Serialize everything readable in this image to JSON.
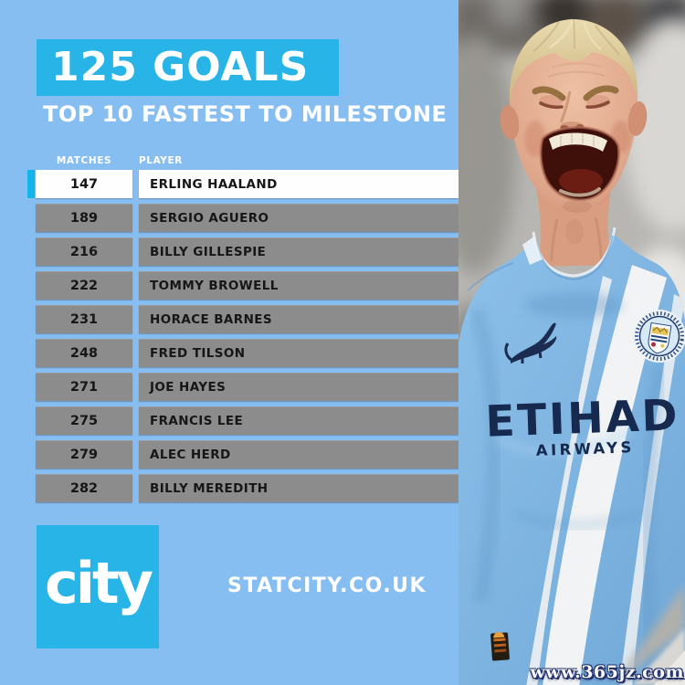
{
  "header": {
    "title": "125 GOALS",
    "subtitle": "TOP 10 FASTEST TO MILESTONE"
  },
  "table": {
    "columns": {
      "matches": "MATCHES",
      "player": "PLAYER"
    },
    "rows": [
      {
        "matches": "147",
        "player": "ERLING HAALAND",
        "highlight": true
      },
      {
        "matches": "189",
        "player": "SERGIO AGUERO",
        "highlight": false
      },
      {
        "matches": "216",
        "player": "BILLY GILLESPIE",
        "highlight": false
      },
      {
        "matches": "222",
        "player": "TOMMY BROWELL",
        "highlight": false
      },
      {
        "matches": "231",
        "player": "HORACE BARNES",
        "highlight": false
      },
      {
        "matches": "248",
        "player": "FRED TILSON",
        "highlight": false
      },
      {
        "matches": "271",
        "player": "JOE HAYES",
        "highlight": false
      },
      {
        "matches": "275",
        "player": "FRANCIS LEE",
        "highlight": false
      },
      {
        "matches": "279",
        "player": "ALEC HERD",
        "highlight": false
      },
      {
        "matches": "282",
        "player": "BILLY MEREDITH",
        "highlight": false
      }
    ]
  },
  "footer": {
    "logo": "city",
    "website": "STATCITY.CO.UK"
  },
  "photo": {
    "shirt_sponsor": "ETIHAD",
    "shirt_sponsor_line2": "AIRWAYS",
    "watermark": "www.365jz.com"
  },
  "colors": {
    "background": "#87BEF2",
    "accent_cyan": "#29B4E8",
    "row_gray": "#8C8C8C",
    "row_highlight": "#FFFFFF",
    "text_dark": "#161616",
    "shirt_blue": "#7FB6E2",
    "navy": "#16294E"
  },
  "chart_data": {
    "type": "table",
    "title": "125 GOALS",
    "subtitle": "TOP 10 FASTEST TO MILESTONE",
    "columns": [
      "MATCHES",
      "PLAYER"
    ],
    "rows": [
      [
        147,
        "ERLING HAALAND"
      ],
      [
        189,
        "SERGIO AGUERO"
      ],
      [
        216,
        "BILLY GILLESPIE"
      ],
      [
        222,
        "TOMMY BROWELL"
      ],
      [
        231,
        "HORACE BARNES"
      ],
      [
        248,
        "FRED TILSON"
      ],
      [
        271,
        "JOE HAYES"
      ],
      [
        275,
        "FRANCIS LEE"
      ],
      [
        279,
        "ALEC HERD"
      ],
      [
        282,
        "BILLY MEREDITH"
      ]
    ],
    "highlighted_row_index": 0,
    "source": "STATCITY.CO.UK"
  }
}
